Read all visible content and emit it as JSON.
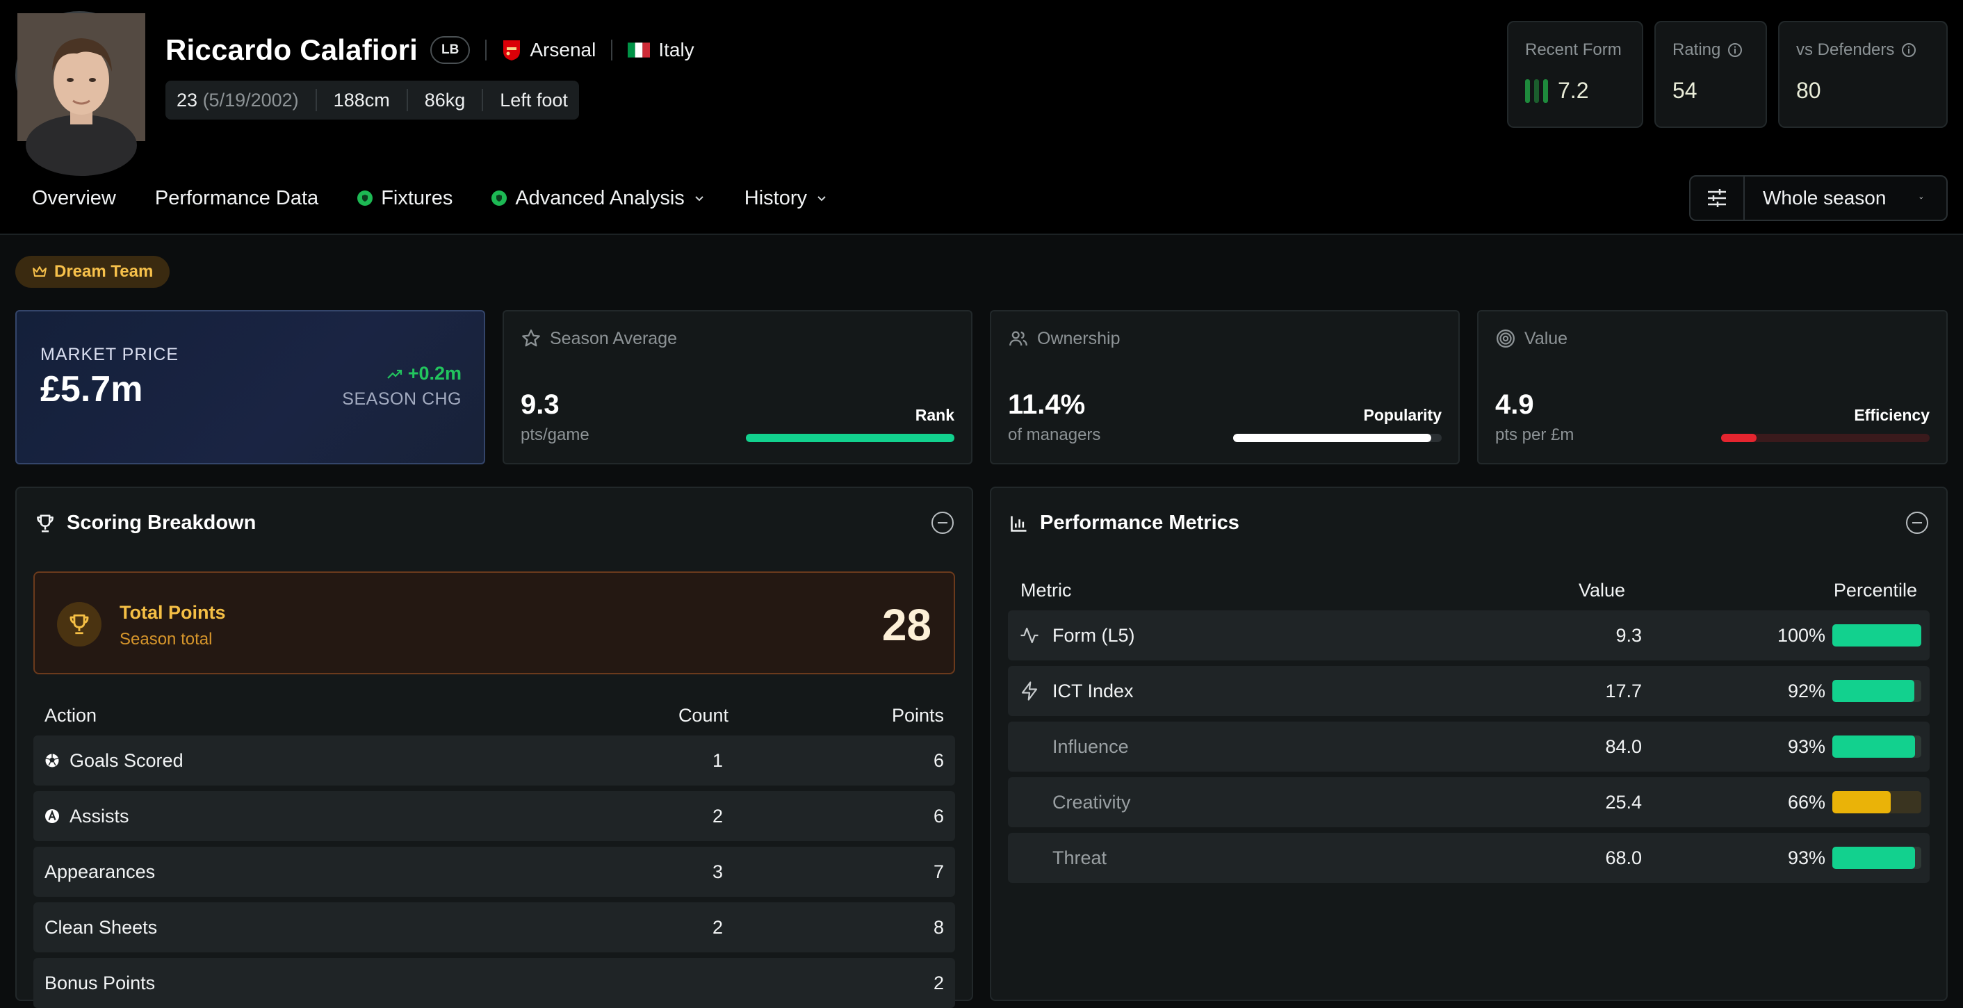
{
  "player": {
    "name": "Riccardo Calafiori",
    "position": "LB",
    "club": "Arsenal",
    "nation": "Italy",
    "age": "23",
    "dob": "(5/19/2002)",
    "height": "188cm",
    "weight": "86kg",
    "foot": "Left foot"
  },
  "stats": {
    "recent_form_label": "Recent Form",
    "recent_form_value": "7.2",
    "rating_label": "Rating",
    "rating_value": "54",
    "vs_defenders_label": "vs Defenders",
    "vs_defenders_value": "80"
  },
  "nav": {
    "items": [
      {
        "label": "Overview"
      },
      {
        "label": "Performance Data"
      },
      {
        "label": "Fixtures"
      },
      {
        "label": "Advanced Analysis"
      },
      {
        "label": "History"
      }
    ],
    "filter_value": "Whole season"
  },
  "badge": {
    "label": "Dream Team"
  },
  "kpis": {
    "market": {
      "label": "MARKET PRICE",
      "value": "£5.7m",
      "change": "+0.2m",
      "change_label": "SEASON CHG"
    },
    "season_avg": {
      "label": "Season Average",
      "value": "9.3",
      "sub": "pts/game",
      "bar_label": "Rank",
      "level": 1.0
    },
    "ownership": {
      "label": "Ownership",
      "value": "11.4%",
      "sub": "of managers",
      "bar_label": "Popularity",
      "level": 0.95
    },
    "value": {
      "label": "Value",
      "value": "4.9",
      "sub": "pts per £m",
      "bar_label": "Efficiency",
      "level": 0.17
    }
  },
  "scoring": {
    "title": "Scoring Breakdown",
    "total_title": "Total Points",
    "total_sub": "Season total",
    "total_value": "28",
    "headers": {
      "action": "Action",
      "count": "Count",
      "points": "Points"
    },
    "rows": [
      {
        "action": "Goals Scored",
        "count": "1",
        "points": "6",
        "icon": "soccer-ball-icon"
      },
      {
        "action": "Assists",
        "count": "2",
        "points": "6",
        "icon": "assist-a-icon"
      },
      {
        "action": "Appearances",
        "count": "3",
        "points": "7"
      },
      {
        "action": "Clean Sheets",
        "count": "2",
        "points": "8"
      },
      {
        "action": "Bonus Points",
        "count": "",
        "points": "2"
      }
    ]
  },
  "performance": {
    "title": "Performance Metrics",
    "headers": {
      "metric": "Metric",
      "value": "Value",
      "percentile": "Percentile"
    },
    "rows": [
      {
        "metric": "Form (L5)",
        "value": "9.3",
        "percentile": "100%",
        "level": 1.0,
        "color": "#12d18e"
      },
      {
        "metric": "ICT Index",
        "value": "17.7",
        "percentile": "92%",
        "level": 0.92,
        "color": "#12d18e"
      },
      {
        "metric": "Influence",
        "value": "84.0",
        "percentile": "93%",
        "level": 0.93,
        "color": "#12d18e"
      },
      {
        "metric": "Creativity",
        "value": "25.4",
        "percentile": "66%",
        "level": 0.66,
        "color": "#eab308"
      },
      {
        "metric": "Threat",
        "value": "68.0",
        "percentile": "93%",
        "level": 0.93,
        "color": "#12d18e"
      }
    ]
  },
  "colors": {
    "accent_green": "#12d18e",
    "change_green": "#22c55e",
    "efficiency_red": "#e5252f",
    "gold": "#f5bf45"
  }
}
